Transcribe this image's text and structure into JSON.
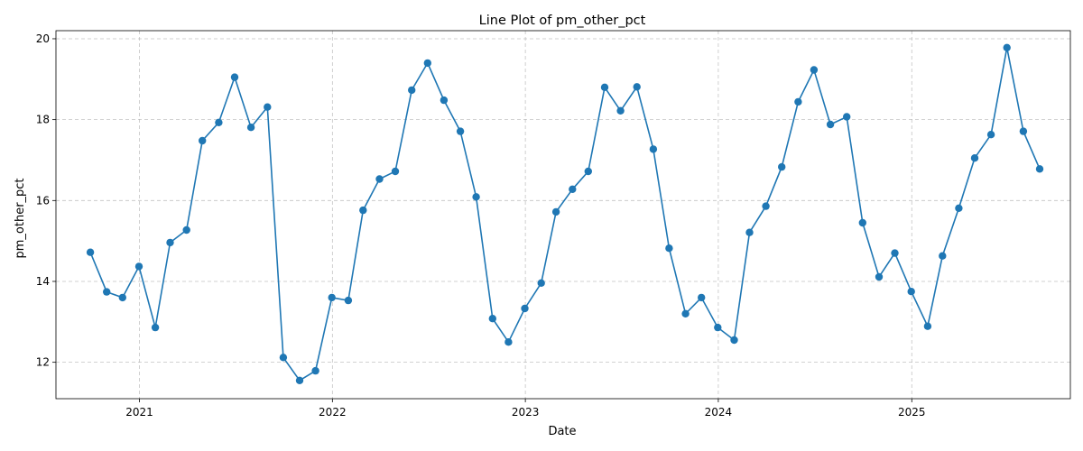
{
  "chart_data": {
    "type": "line",
    "title": "Line Plot of pm_other_pct",
    "xlabel": "Date",
    "ylabel": "pm_other_pct",
    "x_tick_labels": [
      "2021",
      "2022",
      "2023",
      "2024",
      "2025"
    ],
    "y_ticks": [
      12,
      14,
      16,
      18,
      20
    ],
    "ylim": [
      11.1,
      20.2
    ],
    "xlim": [
      "2020-07-27",
      "2025-10-28"
    ],
    "grid": true,
    "grid_style": "dashed",
    "marker": "circle",
    "line_color": "#1f77b4",
    "series": [
      {
        "x": [
          "2020-09-30",
          "2020-10-31",
          "2020-11-30",
          "2020-12-31",
          "2021-01-31",
          "2021-02-28",
          "2021-03-31",
          "2021-04-30",
          "2021-05-31",
          "2021-06-30",
          "2021-07-31",
          "2021-08-31",
          "2021-09-30",
          "2021-10-31",
          "2021-11-30",
          "2021-12-31",
          "2022-01-31",
          "2022-02-28",
          "2022-03-31",
          "2022-04-30",
          "2022-05-31",
          "2022-06-30",
          "2022-07-31",
          "2022-08-31",
          "2022-09-30",
          "2022-10-31",
          "2022-11-30",
          "2022-12-31",
          "2023-01-31",
          "2023-02-28",
          "2023-03-31",
          "2023-04-30",
          "2023-05-31",
          "2023-06-30",
          "2023-07-31",
          "2023-08-31",
          "2023-09-30",
          "2023-10-31",
          "2023-11-30",
          "2023-12-31",
          "2024-01-31",
          "2024-02-29",
          "2024-03-31",
          "2024-04-30",
          "2024-05-31",
          "2024-06-30",
          "2024-07-31",
          "2024-08-31",
          "2024-09-30",
          "2024-10-31",
          "2024-11-30",
          "2024-12-31",
          "2025-01-31",
          "2025-02-28",
          "2025-03-31",
          "2025-04-30",
          "2025-05-31",
          "2025-06-30",
          "2025-07-31",
          "2025-08-31"
        ],
        "y": [
          14.72,
          13.74,
          13.6,
          14.37,
          12.86,
          14.96,
          15.27,
          17.48,
          17.93,
          19.05,
          17.81,
          18.31,
          12.12,
          11.55,
          11.79,
          13.6,
          13.53,
          15.76,
          16.53,
          16.72,
          18.73,
          19.4,
          18.48,
          17.71,
          16.09,
          13.08,
          12.5,
          13.33,
          13.96,
          15.72,
          16.28,
          16.72,
          18.8,
          18.22,
          18.81,
          17.27,
          14.82,
          13.2,
          13.6,
          12.86,
          12.55,
          15.21,
          15.86,
          16.83,
          18.44,
          19.23,
          17.88,
          18.07,
          15.45,
          14.11,
          14.7,
          13.75,
          12.89,
          14.63,
          15.81,
          17.05,
          17.63,
          19.78,
          17.71,
          16.78
        ]
      }
    ]
  }
}
